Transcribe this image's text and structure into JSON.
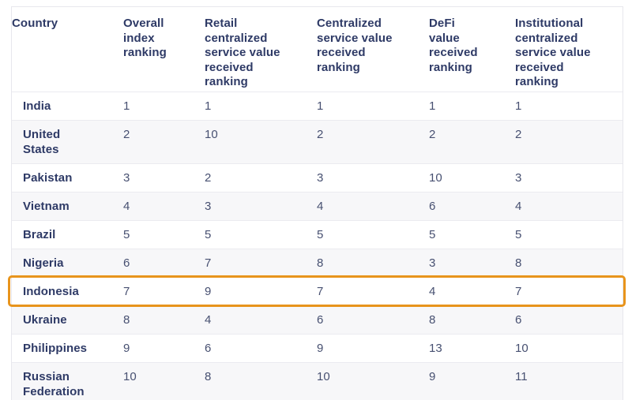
{
  "table": {
    "columns": [
      {
        "label": "Country"
      },
      {
        "label": "Overall\nindex\nranking"
      },
      {
        "label": "Retail\ncentralized\nservice value\nreceived\nranking"
      },
      {
        "label": "Centralized\nservice value\nreceived\nranking"
      },
      {
        "label": "DeFi\nvalue\nreceived\nranking"
      },
      {
        "label": "Institutional\ncentralized\nservice value\nreceived\nranking"
      }
    ],
    "rows": [
      {
        "country": "India",
        "values": [
          "1",
          "1",
          "1",
          "1",
          "1"
        ],
        "highlighted": false
      },
      {
        "country": "United\nStates",
        "values": [
          "2",
          "10",
          "2",
          "2",
          "2"
        ],
        "highlighted": false
      },
      {
        "country": "Pakistan",
        "values": [
          "3",
          "2",
          "3",
          "10",
          "3"
        ],
        "highlighted": false
      },
      {
        "country": "Vietnam",
        "values": [
          "4",
          "3",
          "4",
          "6",
          "4"
        ],
        "highlighted": false
      },
      {
        "country": "Brazil",
        "values": [
          "5",
          "5",
          "5",
          "5",
          "5"
        ],
        "highlighted": false
      },
      {
        "country": "Nigeria",
        "values": [
          "6",
          "7",
          "8",
          "3",
          "8"
        ],
        "highlighted": false
      },
      {
        "country": "Indonesia",
        "values": [
          "7",
          "9",
          "7",
          "4",
          "7"
        ],
        "highlighted": true
      },
      {
        "country": "Ukraine",
        "values": [
          "8",
          "4",
          "6",
          "8",
          "6"
        ],
        "highlighted": false
      },
      {
        "country": "Philippines",
        "values": [
          "9",
          "6",
          "9",
          "13",
          "10"
        ],
        "highlighted": false
      },
      {
        "country": "Russian\nFederation",
        "values": [
          "10",
          "8",
          "10",
          "9",
          "11"
        ],
        "highlighted": false
      }
    ],
    "highlight_color": "#e8941c",
    "header_text_color": "#2e3a66",
    "value_text_color": "#475071",
    "stripe_color": "#f7f7f9"
  },
  "chart_data": {
    "type": "table",
    "title": "",
    "columns": [
      "Country",
      "Overall index ranking",
      "Retail centralized service value received ranking",
      "Centralized service value received ranking",
      "DeFi value received ranking",
      "Institutional centralized service value received ranking"
    ],
    "rows": [
      [
        "India",
        1,
        1,
        1,
        1,
        1
      ],
      [
        "United States",
        2,
        10,
        2,
        2,
        2
      ],
      [
        "Pakistan",
        3,
        2,
        3,
        10,
        3
      ],
      [
        "Vietnam",
        4,
        3,
        4,
        6,
        4
      ],
      [
        "Brazil",
        5,
        5,
        5,
        5,
        5
      ],
      [
        "Nigeria",
        6,
        7,
        8,
        3,
        8
      ],
      [
        "Indonesia",
        7,
        9,
        7,
        4,
        7
      ],
      [
        "Ukraine",
        8,
        4,
        6,
        8,
        6
      ],
      [
        "Philippines",
        9,
        6,
        9,
        13,
        10
      ],
      [
        "Russian Federation",
        10,
        8,
        10,
        9,
        11
      ]
    ],
    "highlighted_row": "Indonesia",
    "layout_hints": {
      "zebra_striping": true,
      "highlight_style": "orange rounded border around Indonesia row"
    }
  }
}
